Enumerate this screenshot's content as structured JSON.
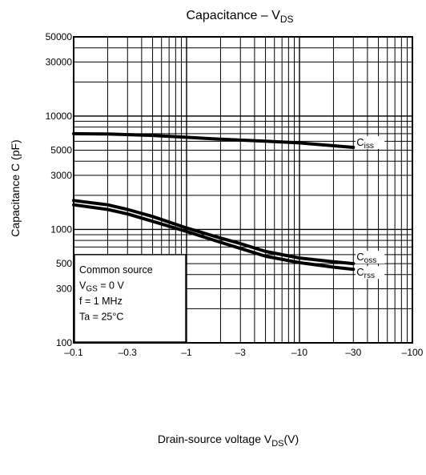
{
  "chart_data": {
    "type": "line",
    "title": "Capacitance – V",
    "title_sub": "DS",
    "xlabel": "Drain-source voltage   V",
    "xlabel_sub": "DS",
    "xlabel_unit": "(V)",
    "ylabel": "Capacitance   C   (pF)",
    "x_scale": "log",
    "y_scale": "log",
    "xlim": [
      -0.1,
      -100
    ],
    "ylim": [
      100,
      50000
    ],
    "grid": true,
    "x_ticks": [
      {
        "value": -0.1,
        "label": "–0.1"
      },
      {
        "value": -0.3,
        "label": "–0.3"
      },
      {
        "value": -1,
        "label": "–1"
      },
      {
        "value": -3,
        "label": "–3"
      },
      {
        "value": -10,
        "label": "–10"
      },
      {
        "value": -30,
        "label": "–30"
      },
      {
        "value": -100,
        "label": "–100"
      }
    ],
    "y_ticks": [
      {
        "value": 100,
        "label": "100"
      },
      {
        "value": 300,
        "label": "300"
      },
      {
        "value": 500,
        "label": "500"
      },
      {
        "value": 1000,
        "label": "1000"
      },
      {
        "value": 3000,
        "label": "3000"
      },
      {
        "value": 5000,
        "label": "5000"
      },
      {
        "value": 10000,
        "label": "10000"
      },
      {
        "value": 30000,
        "label": "30000"
      },
      {
        "value": 50000,
        "label": "50000"
      }
    ],
    "series": [
      {
        "name": "C",
        "name_sub": "iss",
        "x": [
          -0.1,
          -0.2,
          -0.5,
          -1,
          -2,
          -5,
          -10,
          -30
        ],
        "y": [
          7000,
          6950,
          6750,
          6500,
          6250,
          6000,
          5800,
          5300
        ]
      },
      {
        "name": "C",
        "name_sub": "oss",
        "x": [
          -0.1,
          -0.2,
          -0.3,
          -0.5,
          -1,
          -2,
          -3,
          -5,
          -10,
          -20,
          -30
        ],
        "y": [
          1800,
          1650,
          1500,
          1300,
          1030,
          840,
          750,
          640,
          560,
          520,
          500
        ]
      },
      {
        "name": "C",
        "name_sub": "rss",
        "x": [
          -0.1,
          -0.2,
          -0.3,
          -0.5,
          -1,
          -2,
          -3,
          -5,
          -10,
          -20,
          -30
        ],
        "y": [
          1650,
          1500,
          1370,
          1180,
          960,
          770,
          680,
          580,
          510,
          465,
          445
        ]
      }
    ],
    "annotation": {
      "lines": [
        {
          "text": "Common source",
          "sub": "",
          "tail": ""
        },
        {
          "text": "V",
          "sub": "GS",
          "tail": " = 0 V"
        },
        {
          "text": "f = 1 MHz",
          "sub": "",
          "tail": ""
        },
        {
          "text": "Ta = 25°C",
          "sub": "",
          "tail": ""
        }
      ]
    }
  }
}
